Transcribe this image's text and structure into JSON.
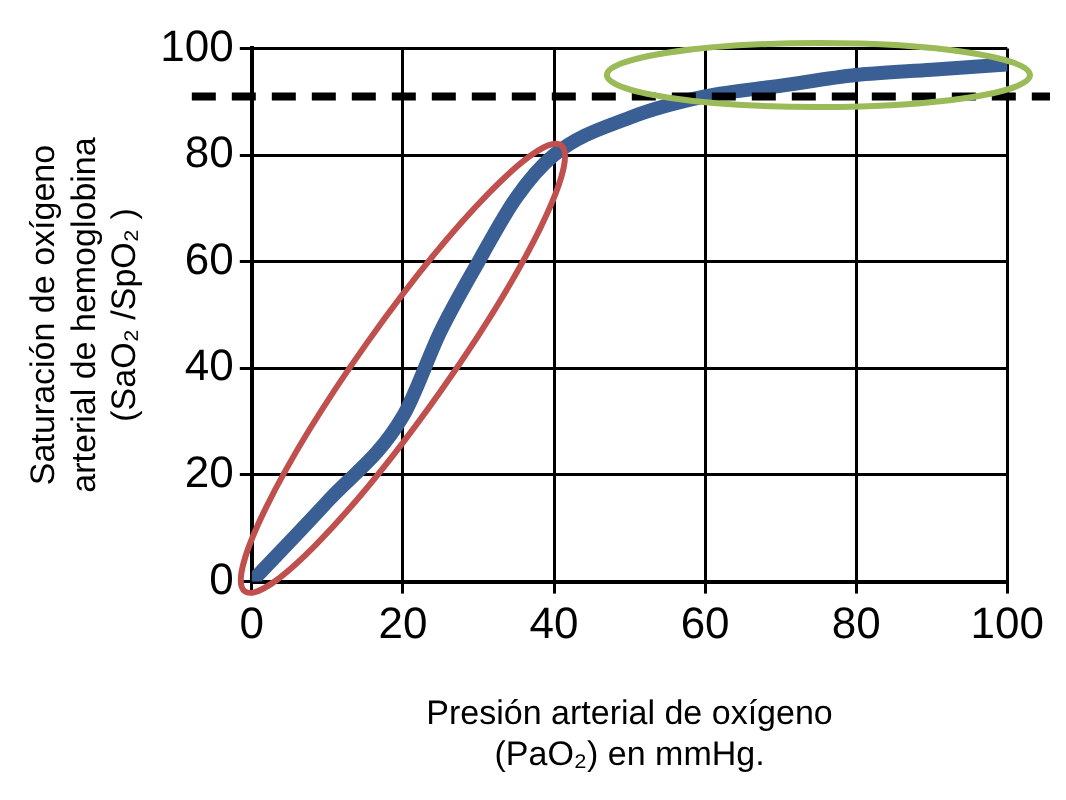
{
  "chart_data": {
    "type": "line",
    "xlabel": "Presión arterial de oxígeno\n(PaO₂) en mmHg.",
    "ylabel": "Saturación de oxígeno\narterial de hemoglobina\n(SaO₂ /SpO₂ )",
    "series": [
      {
        "color": "#3a5f94",
        "x": [
          0,
          10,
          20,
          25,
          30,
          35,
          40,
          50,
          60,
          70,
          80,
          90,
          100
        ],
        "values": [
          0,
          15,
          31,
          47,
          60,
          72,
          80,
          87,
          91,
          93,
          95,
          96,
          97
        ]
      }
    ],
    "xlim": [
      0,
      100
    ],
    "xticks": [
      0,
      20,
      40,
      60,
      80,
      100
    ],
    "ylim": [
      0,
      100
    ],
    "yticks": [
      0,
      20,
      40,
      60,
      80,
      100
    ],
    "grid": true,
    "marker": "none",
    "line_style": "solid",
    "legend": false,
    "ref_lines": [
      {
        "axis": "y",
        "value": 91,
        "color": "#000000",
        "line_style": "dashed"
      }
    ]
  }
}
